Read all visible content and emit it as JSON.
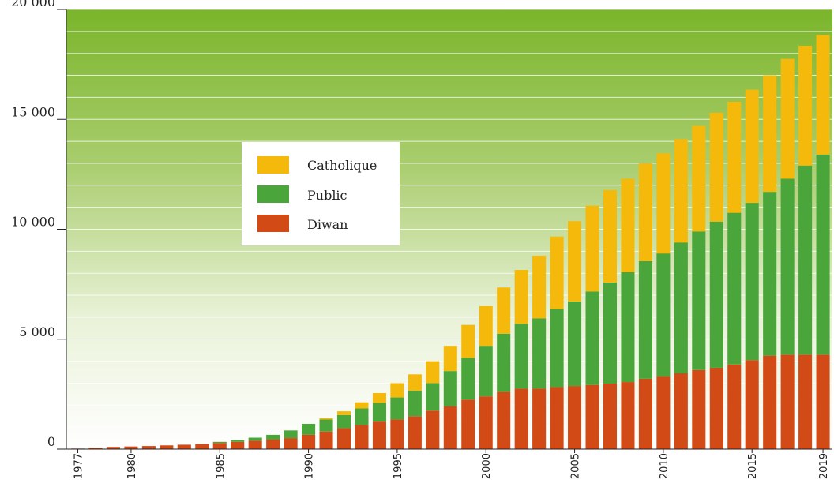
{
  "colors": {
    "catholique": "#f5b90c",
    "public": "#4aa63a",
    "diwan": "#d24b16",
    "background_top": "#7ab52a",
    "background_bottom": "#ffffff"
  },
  "chart_data": {
    "type": "bar",
    "stacked": true,
    "title": "",
    "xlabel": "",
    "ylabel": "",
    "ylim": [
      0,
      20000
    ],
    "yticks": [
      0,
      5000,
      10000,
      15000,
      20000
    ],
    "ytick_labels": [
      "0",
      "5 000",
      "10 000",
      "15 000",
      "20 000"
    ],
    "xtick_labels": [
      "1977",
      "1980",
      "1985",
      "1990",
      "1995",
      "2000",
      "2005",
      "2010",
      "2015",
      "2019"
    ],
    "grid": "horizontal",
    "legend_position": "upper-left",
    "categories": [
      1977,
      1978,
      1979,
      1980,
      1981,
      1982,
      1983,
      1984,
      1985,
      1986,
      1987,
      1988,
      1989,
      1990,
      1991,
      1992,
      1993,
      1994,
      1995,
      1996,
      1997,
      1998,
      1999,
      2000,
      2001,
      2002,
      2003,
      2004,
      2005,
      2006,
      2007,
      2008,
      2009,
      2010,
      2011,
      2012,
      2013,
      2014,
      2015,
      2016,
      2017,
      2018,
      2019
    ],
    "series": [
      {
        "name": "Diwan",
        "key": "diwan",
        "values": [
          25,
          60,
          100,
          120,
          140,
          170,
          200,
          230,
          280,
          330,
          380,
          430,
          500,
          650,
          800,
          950,
          1100,
          1250,
          1350,
          1500,
          1750,
          1950,
          2250,
          2400,
          2600,
          2750,
          2750,
          2820,
          2870,
          2920,
          2980,
          3050,
          3200,
          3300,
          3450,
          3600,
          3700,
          3850,
          4050,
          4250,
          4300,
          4300,
          4300
        ]
      },
      {
        "name": "Public",
        "key": "public",
        "values": [
          0,
          0,
          0,
          0,
          0,
          0,
          0,
          0,
          50,
          80,
          140,
          220,
          350,
          500,
          550,
          600,
          750,
          850,
          1000,
          1150,
          1250,
          1600,
          1900,
          2300,
          2650,
          2950,
          3200,
          3550,
          3850,
          4250,
          4600,
          5000,
          5350,
          5600,
          5950,
          6300,
          6650,
          6900,
          7150,
          7450,
          8000,
          8600,
          9100
        ]
      },
      {
        "name": "Catholique",
        "key": "catholique",
        "values": [
          0,
          0,
          0,
          0,
          0,
          0,
          0,
          0,
          0,
          0,
          0,
          0,
          0,
          0,
          60,
          170,
          280,
          450,
          650,
          750,
          1000,
          1150,
          1500,
          1800,
          2100,
          2450,
          2850,
          3300,
          3650,
          3900,
          4200,
          4250,
          4450,
          4550,
          4700,
          4800,
          4950,
          5050,
          5150,
          5300,
          5450,
          5450,
          5450
        ]
      }
    ],
    "legend_order": [
      "Catholique",
      "Public",
      "Diwan"
    ]
  }
}
